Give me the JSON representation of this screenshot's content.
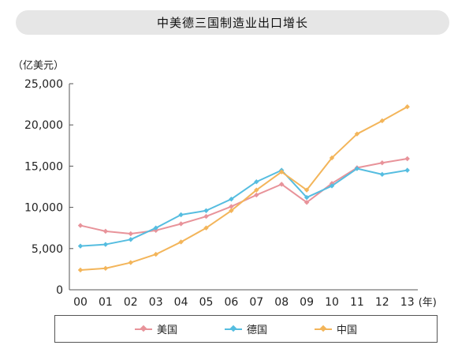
{
  "title": "中美德三国制造业出口增长",
  "colors": {
    "us": "#e8939a",
    "de": "#55bde0",
    "cn": "#f3b55a",
    "axis": "#555555"
  },
  "chart_data": {
    "type": "line",
    "title": "中美德三国制造业出口增长",
    "ylabel": "（亿美元）",
    "xlabel": "(年)",
    "categories": [
      "00",
      "01",
      "02",
      "03",
      "04",
      "05",
      "06",
      "07",
      "08",
      "09",
      "10",
      "11",
      "12",
      "13"
    ],
    "yticks": [
      "0",
      "5,000",
      "10,000",
      "15,000",
      "20,000",
      "25,000"
    ],
    "ylim": [
      0,
      25000
    ],
    "grid": false,
    "legend_position": "bottom",
    "series": [
      {
        "name": "美国",
        "color": "#e8939a",
        "values": [
          7800,
          7100,
          6800,
          7200,
          8000,
          8900,
          10100,
          11500,
          12800,
          10600,
          12900,
          14800,
          15400,
          15900
        ]
      },
      {
        "name": "德国",
        "color": "#55bde0",
        "values": [
          5300,
          5500,
          6100,
          7500,
          9100,
          9600,
          11000,
          13100,
          14500,
          11200,
          12600,
          14700,
          14000,
          14500
        ]
      },
      {
        "name": "中国",
        "color": "#f3b55a",
        "values": [
          2400,
          2600,
          3300,
          4300,
          5800,
          7500,
          9600,
          12100,
          14300,
          12100,
          16000,
          18900,
          20500,
          22200
        ]
      }
    ]
  }
}
